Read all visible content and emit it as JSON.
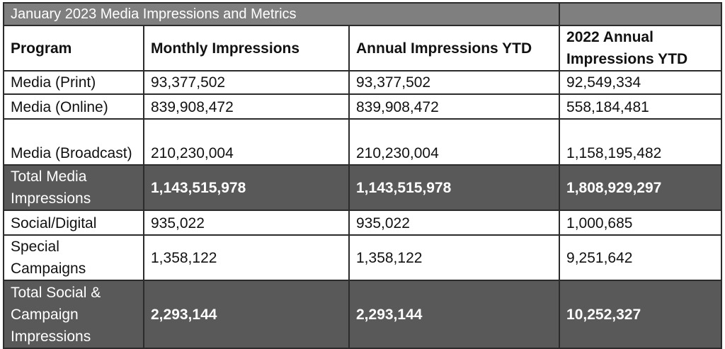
{
  "title": "January 2023 Media Impressions and Metrics",
  "headers": [
    "Program",
    "Monthly Impressions",
    "Annual Impressions YTD",
    "2022 Annual Impressions YTD"
  ],
  "rows": [
    {
      "program": "Media (Print)",
      "monthly": "93,377,502",
      "annual": "93,377,502",
      "annual_2022": "92,549,334"
    },
    {
      "program": "Media (Online)",
      "monthly": "839,908,472",
      "annual": "839,908,472",
      "annual_2022": "558,184,481"
    },
    {
      "program": "Media (Broadcast)",
      "monthly": "210,230,004",
      "annual": "210,230,004",
      "annual_2022": "1,158,195,482"
    },
    {
      "program": "Total Media Impressions",
      "monthly": "1,143,515,978",
      "annual": "1,143,515,978",
      "annual_2022": "1,808,929,297"
    },
    {
      "program": "Social/Digital",
      "monthly": "935,022",
      "annual": "935,022",
      "annual_2022": "1,000,685"
    },
    {
      "program": "Special Campaigns",
      "monthly": "1,358,122",
      "annual": "1,358,122",
      "annual_2022": "9,251,642"
    },
    {
      "program": "Total Social & Campaign Impressions",
      "monthly": "2,293,144",
      "annual": "2,293,144",
      "annual_2022": "10,252,327"
    }
  ],
  "colors": {
    "title_bg": "#7f7f7f",
    "total_bg": "#595959"
  }
}
